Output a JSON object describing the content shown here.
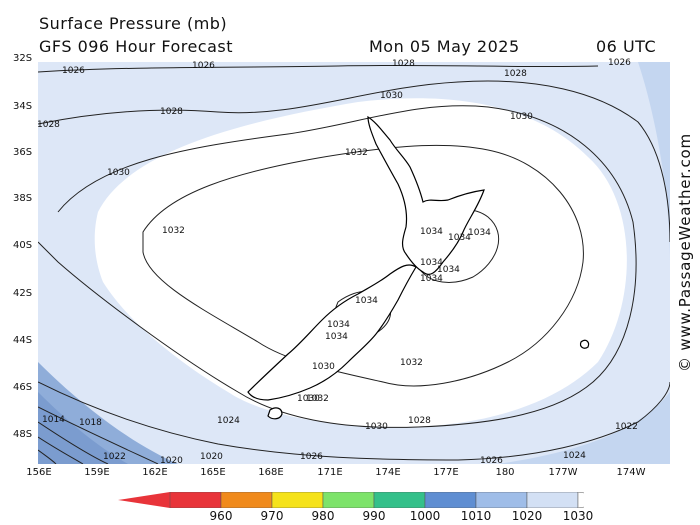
{
  "header": {
    "title": "Surface Pressure (mb)",
    "model": "GFS 096 Hour Forecast",
    "date": "Mon 05 May 2025",
    "time": "06 UTC"
  },
  "credit": "© www.PassageWeather.com",
  "lat_labels": [
    "32S",
    "34S",
    "36S",
    "38S",
    "40S",
    "42S",
    "44S",
    "46S",
    "48S"
  ],
  "lon_labels": [
    "156E",
    "159E",
    "162E",
    "165E",
    "168E",
    "171E",
    "174E",
    "177E",
    "180",
    "177W",
    "174W"
  ],
  "isobar_labels": [
    {
      "text": "1026"
    },
    {
      "text": "1026"
    },
    {
      "text": "1028"
    },
    {
      "text": "1028"
    },
    {
      "text": "1026"
    },
    {
      "text": "1028"
    },
    {
      "text": "1028"
    },
    {
      "text": "1030"
    },
    {
      "text": "1030"
    },
    {
      "text": "1032"
    },
    {
      "text": "1030"
    },
    {
      "text": "1032"
    },
    {
      "text": "1034"
    },
    {
      "text": "1034"
    },
    {
      "text": "1034"
    },
    {
      "text": "1034"
    },
    {
      "text": "1034"
    },
    {
      "text": "1034"
    },
    {
      "text": "1034"
    },
    {
      "text": "1034"
    },
    {
      "text": "1034"
    },
    {
      "text": "1032"
    },
    {
      "text": "1030"
    },
    {
      "text": "1032"
    },
    {
      "text": "1030"
    },
    {
      "text": "1030"
    },
    {
      "text": "1028"
    },
    {
      "text": "1024"
    },
    {
      "text": "1018"
    },
    {
      "text": "1014"
    },
    {
      "text": "1026"
    },
    {
      "text": "1020"
    },
    {
      "text": "1022"
    },
    {
      "text": "1024"
    },
    {
      "text": "1026"
    },
    {
      "text": "1022"
    },
    {
      "text": "1020"
    }
  ],
  "legend": {
    "ticks": [
      "960",
      "970",
      "980",
      "990",
      "1000",
      "1010",
      "1020",
      "1030"
    ],
    "colors": [
      "#e8343a",
      "#f08a1c",
      "#f5e21a",
      "#7de36a",
      "#34c08a",
      "#5f8ed2",
      "#9fbde8",
      "#d3e0f4"
    ]
  },
  "colors": {
    "outer": "#a9c1e6",
    "mid": "#c4d6f0",
    "inner": "#dde7f7",
    "high": "#ffffff"
  }
}
